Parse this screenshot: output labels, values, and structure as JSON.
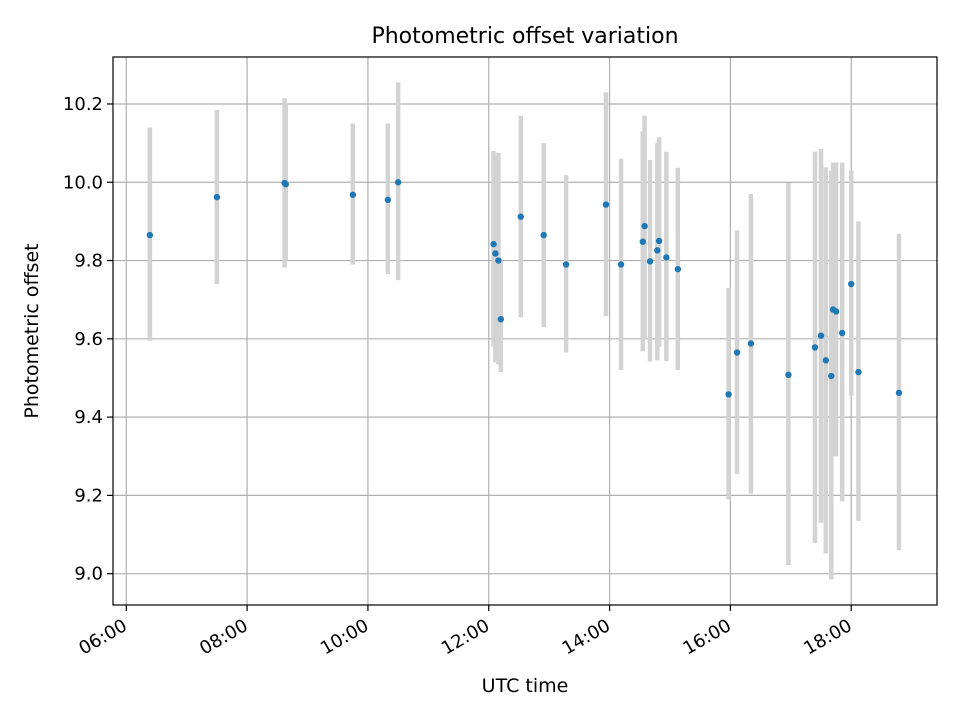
{
  "chart_data": {
    "type": "scatter",
    "title": "Photometric offset variation",
    "xlabel": "UTC time",
    "ylabel": "Photometric offset",
    "x_unit": "hours",
    "xlim": [
      5.78,
      19.42
    ],
    "ylim": [
      8.92,
      10.32
    ],
    "xticks": [
      {
        "value": 6,
        "label": "06:00"
      },
      {
        "value": 8,
        "label": "08:00"
      },
      {
        "value": 10,
        "label": "10:00"
      },
      {
        "value": 12,
        "label": "12:00"
      },
      {
        "value": 14,
        "label": "14:00"
      },
      {
        "value": 16,
        "label": "16:00"
      },
      {
        "value": 18,
        "label": "18:00"
      }
    ],
    "yticks": [
      {
        "value": 9.0,
        "label": "9.0"
      },
      {
        "value": 9.2,
        "label": "9.2"
      },
      {
        "value": 9.4,
        "label": "9.4"
      },
      {
        "value": 9.6,
        "label": "9.6"
      },
      {
        "value": 9.8,
        "label": "9.8"
      },
      {
        "value": 10.0,
        "label": "10.0"
      },
      {
        "value": 10.2,
        "label": "10.2"
      }
    ],
    "grid": true,
    "marker_color": "#1f77b4",
    "errorbar_color": "#d3d3d3",
    "points": [
      {
        "time": "06:23",
        "x": 6.39,
        "y": 9.865,
        "ylo": 9.595,
        "yhi": 10.14
      },
      {
        "time": "07:30",
        "x": 7.5,
        "y": 9.962,
        "ylo": 9.74,
        "yhi": 10.185
      },
      {
        "time": "08:37",
        "x": 8.62,
        "y": 9.998,
        "ylo": 9.782,
        "yhi": 10.215
      },
      {
        "time": "08:38",
        "x": 8.64,
        "y": 9.995,
        "ylo": 9.8,
        "yhi": 10.2
      },
      {
        "time": "09:45",
        "x": 9.75,
        "y": 9.968,
        "ylo": 9.79,
        "yhi": 10.15
      },
      {
        "time": "10:20",
        "x": 10.33,
        "y": 9.955,
        "ylo": 9.765,
        "yhi": 10.15
      },
      {
        "time": "10:30",
        "x": 10.5,
        "y": 10.0,
        "ylo": 9.75,
        "yhi": 10.255
      },
      {
        "time": "12:05",
        "x": 12.08,
        "y": 9.842,
        "ylo": 9.58,
        "yhi": 10.08
      },
      {
        "time": "12:07",
        "x": 12.11,
        "y": 9.818,
        "ylo": 9.54,
        "yhi": 10.07
      },
      {
        "time": "12:10",
        "x": 12.16,
        "y": 9.8,
        "ylo": 9.535,
        "yhi": 10.075
      },
      {
        "time": "12:12",
        "x": 12.2,
        "y": 9.65,
        "ylo": 9.515,
        "yhi": 9.8
      },
      {
        "time": "12:32",
        "x": 12.53,
        "y": 9.912,
        "ylo": 9.655,
        "yhi": 10.17
      },
      {
        "time": "12:55",
        "x": 12.91,
        "y": 9.865,
        "ylo": 9.63,
        "yhi": 10.1
      },
      {
        "time": "13:17",
        "x": 13.28,
        "y": 9.79,
        "ylo": 9.565,
        "yhi": 10.018
      },
      {
        "time": "13:56",
        "x": 13.94,
        "y": 9.943,
        "ylo": 9.658,
        "yhi": 10.23
      },
      {
        "time": "14:11",
        "x": 14.19,
        "y": 9.79,
        "ylo": 9.52,
        "yhi": 10.06
      },
      {
        "time": "14:33",
        "x": 14.55,
        "y": 9.848,
        "ylo": 9.568,
        "yhi": 10.13
      },
      {
        "time": "14:35",
        "x": 14.58,
        "y": 9.888,
        "ylo": 9.6,
        "yhi": 10.17
      },
      {
        "time": "14:40",
        "x": 14.67,
        "y": 9.798,
        "ylo": 9.542,
        "yhi": 10.057
      },
      {
        "time": "14:47",
        "x": 14.79,
        "y": 9.826,
        "ylo": 9.545,
        "yhi": 10.1
      },
      {
        "time": "14:49",
        "x": 14.82,
        "y": 9.85,
        "ylo": 9.58,
        "yhi": 10.115
      },
      {
        "time": "14:56",
        "x": 14.94,
        "y": 9.808,
        "ylo": 9.543,
        "yhi": 10.078
      },
      {
        "time": "15:08",
        "x": 15.13,
        "y": 9.778,
        "ylo": 9.52,
        "yhi": 10.037
      },
      {
        "time": "15:58",
        "x": 15.97,
        "y": 9.458,
        "ylo": 9.19,
        "yhi": 9.73
      },
      {
        "time": "16:07",
        "x": 16.11,
        "y": 9.565,
        "ylo": 9.255,
        "yhi": 9.877
      },
      {
        "time": "16:21",
        "x": 16.34,
        "y": 9.588,
        "ylo": 9.205,
        "yhi": 9.97
      },
      {
        "time": "16:58",
        "x": 16.96,
        "y": 9.508,
        "ylo": 9.022,
        "yhi": 9.998
      },
      {
        "time": "17:24",
        "x": 17.4,
        "y": 9.578,
        "ylo": 9.078,
        "yhi": 10.078
      },
      {
        "time": "17:30",
        "x": 17.5,
        "y": 9.608,
        "ylo": 9.13,
        "yhi": 10.085
      },
      {
        "time": "17:35",
        "x": 17.58,
        "y": 9.545,
        "ylo": 9.052,
        "yhi": 10.038
      },
      {
        "time": "17:40",
        "x": 17.67,
        "y": 9.505,
        "ylo": 8.985,
        "yhi": 10.03
      },
      {
        "time": "17:42",
        "x": 17.7,
        "y": 9.675,
        "ylo": 9.3,
        "yhi": 10.05
      },
      {
        "time": "17:45",
        "x": 17.75,
        "y": 9.67,
        "ylo": 9.3,
        "yhi": 10.05
      },
      {
        "time": "17:51",
        "x": 17.85,
        "y": 9.615,
        "ylo": 9.185,
        "yhi": 10.05
      },
      {
        "time": "18:00",
        "x": 18.0,
        "y": 9.74,
        "ylo": 9.455,
        "yhi": 10.03
      },
      {
        "time": "18:07",
        "x": 18.12,
        "y": 9.515,
        "ylo": 9.135,
        "yhi": 9.9
      },
      {
        "time": "18:47",
        "x": 18.79,
        "y": 9.462,
        "ylo": 9.06,
        "yhi": 9.868
      }
    ]
  }
}
